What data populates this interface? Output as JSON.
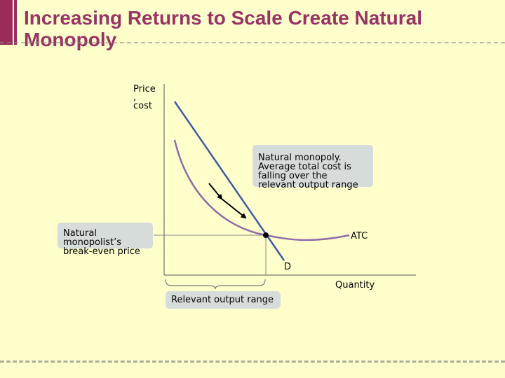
{
  "slide": {
    "title": "Increasing Returns to Scale Create Natural Monopoly"
  },
  "chart_data": {
    "type": "line",
    "ylabel": [
      "Price",
      ",",
      "cost"
    ],
    "xlabel": "Quantity",
    "series": [
      {
        "name": "ATC"
      },
      {
        "name": "D"
      }
    ]
  },
  "annotations": {
    "monopoly_box": [
      "Natural monopoly.",
      "Average total cost is",
      "falling over the",
      "relevant output range"
    ],
    "breakeven_box": [
      "Natural",
      "monopolist’s",
      "break-even price"
    ],
    "range_box": "Relevant output range"
  },
  "colors": {
    "title": "#993366",
    "atc_curve": "#8E6BA8",
    "demand_curve": "#3B5BA5",
    "callout": "#D6DCDA",
    "background": "#FFFFCC"
  }
}
